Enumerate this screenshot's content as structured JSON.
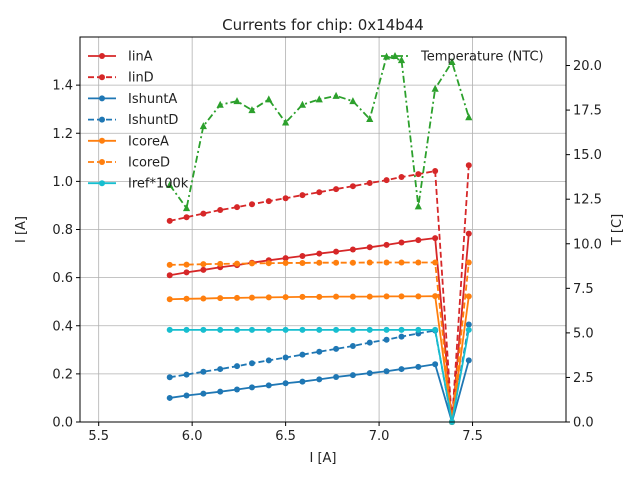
{
  "chart_data": {
    "type": "line",
    "title": "Currents for chip: 0x14b44",
    "xlabel": "I [A]",
    "ylabel": "I [A]",
    "y2label": "T [C]",
    "xlim": [
      5.4,
      8.0
    ],
    "ylim": [
      0,
      1.6
    ],
    "y2lim": [
      0,
      21.6
    ],
    "xticks": [
      "5.5",
      "6.0",
      "6.5",
      "7.0",
      "7.5"
    ],
    "xtick_values": [
      5.5,
      6.0,
      6.5,
      7.0,
      7.5
    ],
    "yticks": [
      "0.0",
      "0.2",
      "0.4",
      "0.6",
      "0.8",
      "1.0",
      "1.2",
      "1.4"
    ],
    "ytick_values": [
      0,
      0.2,
      0.4,
      0.6,
      0.8,
      1.0,
      1.2,
      1.4
    ],
    "y2ticks": [
      "0.0",
      "2.5",
      "5.0",
      "7.5",
      "10.0",
      "12.5",
      "15.0",
      "17.5",
      "20.0"
    ],
    "y2tick_values": [
      0,
      2.5,
      5.0,
      7.5,
      10.0,
      12.5,
      15.0,
      17.5,
      20.0
    ],
    "grid": true,
    "legend_placement": "top-left",
    "legend2_placement": "top-right",
    "x": [
      5.88,
      5.97,
      6.06,
      6.15,
      6.24,
      6.32,
      6.41,
      6.5,
      6.59,
      6.68,
      6.77,
      6.86,
      6.95,
      7.04,
      7.12,
      7.21,
      7.3,
      7.39,
      7.48
    ],
    "series": [
      {
        "name": "IinA",
        "axis": "left",
        "color": "#d62728",
        "dash": "solid",
        "marker": "circle",
        "values": [
          0.61,
          0.622,
          0.632,
          0.643,
          0.652,
          0.662,
          0.672,
          0.681,
          0.69,
          0.7,
          0.708,
          0.717,
          0.726,
          0.736,
          0.746,
          0.756,
          0.764,
          0.0,
          0.783
        ]
      },
      {
        "name": "IinD",
        "axis": "left",
        "color": "#d62728",
        "dash": "dashed",
        "marker": "circle",
        "values": [
          0.836,
          0.851,
          0.866,
          0.881,
          0.893,
          0.905,
          0.918,
          0.93,
          0.943,
          0.955,
          0.968,
          0.98,
          0.993,
          1.005,
          1.018,
          1.03,
          1.043,
          0.0,
          1.067
        ]
      },
      {
        "name": "IshuntA",
        "axis": "left",
        "color": "#1f77b4",
        "dash": "solid",
        "marker": "circle",
        "values": [
          0.1,
          0.11,
          0.118,
          0.126,
          0.135,
          0.144,
          0.152,
          0.161,
          0.168,
          0.177,
          0.187,
          0.195,
          0.203,
          0.211,
          0.22,
          0.229,
          0.24,
          0.0,
          0.256
        ]
      },
      {
        "name": "IshuntD",
        "axis": "left",
        "color": "#1f77b4",
        "dash": "dashed",
        "marker": "circle",
        "values": [
          0.186,
          0.197,
          0.209,
          0.22,
          0.232,
          0.244,
          0.256,
          0.268,
          0.28,
          0.292,
          0.304,
          0.316,
          0.33,
          0.342,
          0.355,
          0.368,
          0.38,
          0.0,
          0.405
        ]
      },
      {
        "name": "IcoreA",
        "axis": "left",
        "color": "#ff7f0e",
        "dash": "solid",
        "marker": "circle",
        "values": [
          0.51,
          0.512,
          0.513,
          0.515,
          0.516,
          0.517,
          0.518,
          0.519,
          0.52,
          0.52,
          0.521,
          0.521,
          0.521,
          0.522,
          0.522,
          0.522,
          0.523,
          0.0,
          0.522
        ]
      },
      {
        "name": "IcoreD",
        "axis": "left",
        "color": "#ff7f0e",
        "dash": "dashed",
        "marker": "circle",
        "values": [
          0.653,
          0.654,
          0.656,
          0.657,
          0.658,
          0.659,
          0.66,
          0.661,
          0.661,
          0.662,
          0.662,
          0.662,
          0.663,
          0.663,
          0.663,
          0.663,
          0.663,
          0.0,
          0.663
        ]
      },
      {
        "name": "Iref*100k",
        "axis": "left",
        "color": "#17becf",
        "dash": "solid",
        "marker": "circle",
        "values": [
          0.383,
          0.383,
          0.383,
          0.383,
          0.383,
          0.383,
          0.383,
          0.383,
          0.383,
          0.383,
          0.383,
          0.383,
          0.383,
          0.383,
          0.383,
          0.383,
          0.383,
          0.0,
          0.383
        ]
      },
      {
        "name": "Temperature (NTC)",
        "axis": "right",
        "color": "#2ca02c",
        "dash": "dashdot",
        "marker": "triangle",
        "values": [
          13.3,
          12.0,
          16.6,
          17.8,
          18.0,
          17.5,
          18.1,
          16.8,
          17.8,
          18.1,
          18.3,
          18.0,
          17.0,
          20.5,
          20.3,
          12.1,
          18.7,
          20.2,
          17.1
        ]
      }
    ]
  }
}
